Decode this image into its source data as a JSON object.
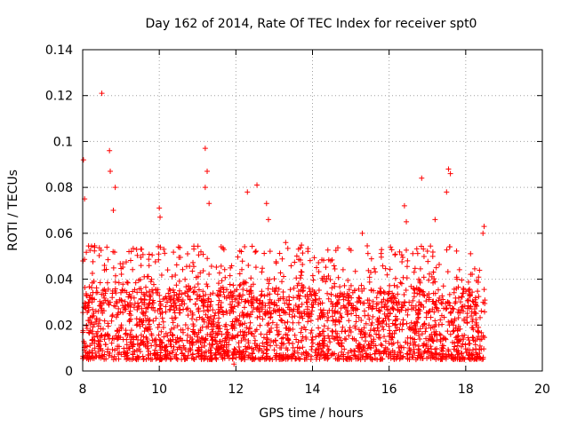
{
  "chart_data": {
    "type": "scatter",
    "title": "Day 162 of 2014, Rate Of TEC Index for receiver spt0",
    "xlabel": "GPS time / hours",
    "ylabel": "ROTI / TECUs",
    "xlim": [
      8,
      20
    ],
    "ylim": [
      0,
      0.14
    ],
    "xticks": [
      "8",
      "10",
      "12",
      "14",
      "16",
      "18",
      "20"
    ],
    "yticks": [
      "0",
      "0.02",
      "0.04",
      "0.06",
      "0.08",
      "0.1",
      "0.12",
      "0.14"
    ],
    "grid": true,
    "marker": "+",
    "color": "#ff0000",
    "x_range_of_data": [
      8.0,
      18.5
    ],
    "series": [
      {
        "name": "ROTI",
        "dense_band": {
          "y_low": 0.005,
          "y_high": 0.03
        },
        "notable_points": [
          {
            "x": 8.5,
            "y": 0.121
          },
          {
            "x": 8.02,
            "y": 0.092
          },
          {
            "x": 8.05,
            "y": 0.075
          },
          {
            "x": 8.7,
            "y": 0.096
          },
          {
            "x": 8.72,
            "y": 0.087
          },
          {
            "x": 8.8,
            "y": 0.07
          },
          {
            "x": 8.85,
            "y": 0.08
          },
          {
            "x": 10.0,
            "y": 0.071
          },
          {
            "x": 10.02,
            "y": 0.067
          },
          {
            "x": 11.2,
            "y": 0.097
          },
          {
            "x": 11.25,
            "y": 0.087
          },
          {
            "x": 11.2,
            "y": 0.08
          },
          {
            "x": 11.3,
            "y": 0.073
          },
          {
            "x": 12.3,
            "y": 0.078
          },
          {
            "x": 12.55,
            "y": 0.081
          },
          {
            "x": 12.8,
            "y": 0.073
          },
          {
            "x": 12.85,
            "y": 0.066
          },
          {
            "x": 13.3,
            "y": 0.056
          },
          {
            "x": 15.3,
            "y": 0.06
          },
          {
            "x": 16.4,
            "y": 0.072
          },
          {
            "x": 16.45,
            "y": 0.065
          },
          {
            "x": 16.85,
            "y": 0.084
          },
          {
            "x": 17.2,
            "y": 0.066
          },
          {
            "x": 17.5,
            "y": 0.078
          },
          {
            "x": 17.55,
            "y": 0.088
          },
          {
            "x": 17.6,
            "y": 0.086
          },
          {
            "x": 18.45,
            "y": 0.06
          },
          {
            "x": 18.48,
            "y": 0.063
          },
          {
            "x": 11.95,
            "y": 0.003
          }
        ]
      }
    ]
  }
}
